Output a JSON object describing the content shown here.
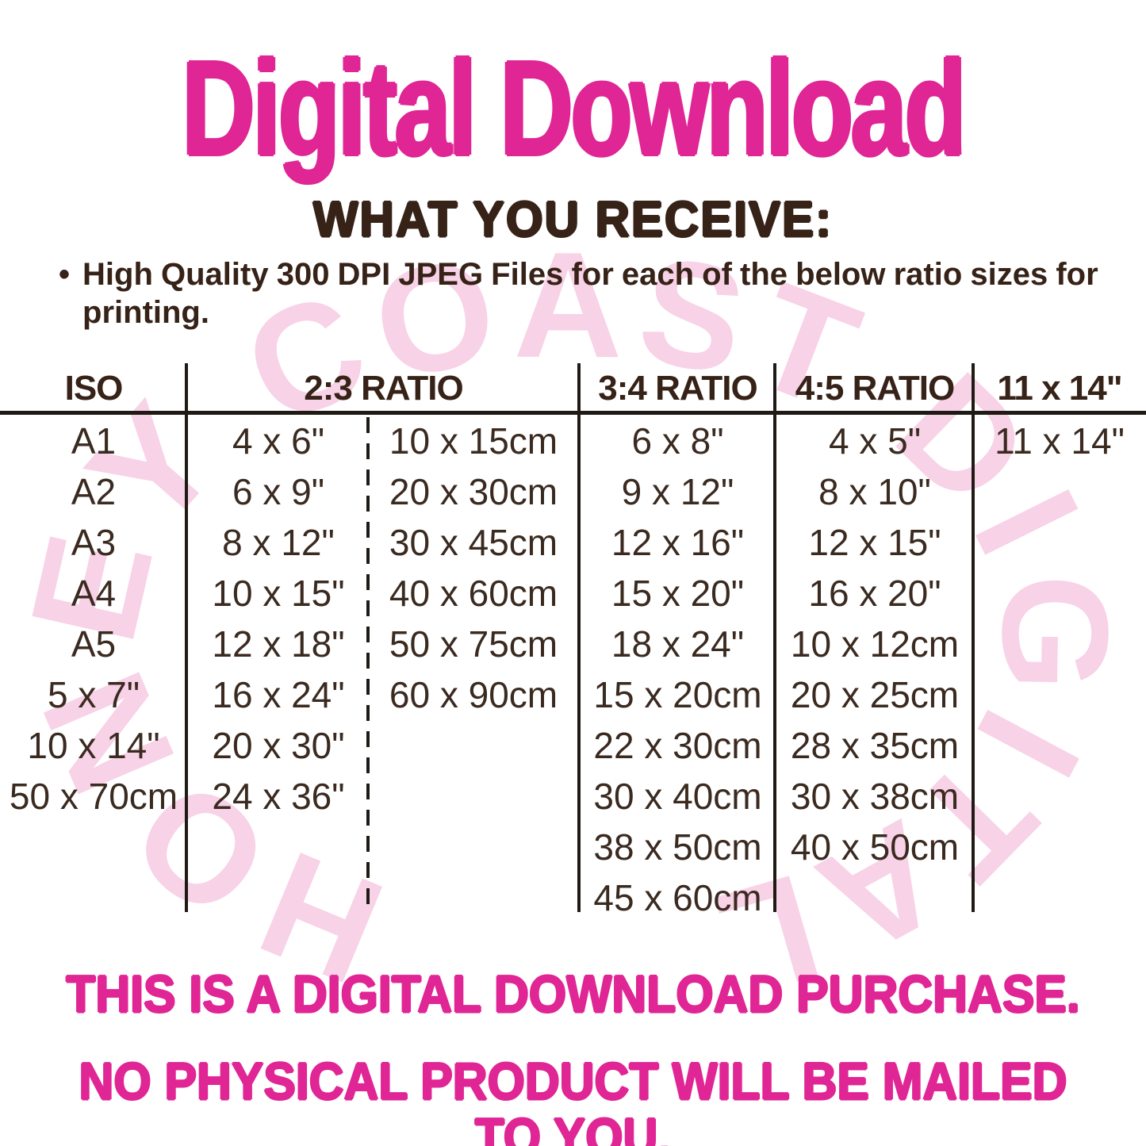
{
  "title": "Digital Download",
  "section": {
    "heading": "WHAT YOU RECEIVE:",
    "bullet_marker": "•",
    "bullet": "High Quality 300 DPI JPEG Files for each of the below ratio sizes for printing."
  },
  "watermark_text": "HONEY COAST DIGITAL",
  "table": {
    "headers": {
      "iso": "ISO",
      "ratio23": "2:3 RATIO",
      "ratio34": "3:4 RATIO",
      "ratio45": "4:5 RATIO",
      "size11": "11 x 14\""
    },
    "iso_column": [
      "A1",
      "A2",
      "A3",
      "A4",
      "A5",
      "5 x 7\"",
      "10 x 14\"",
      "50 x 70cm"
    ],
    "ratio23_inches": [
      "4 x 6\"",
      "6 x 9\"",
      "8 x 12\"",
      "10 x 15\"",
      "12 x 18\"",
      "16 x 24\"",
      "20 x 30\"",
      "24 x 36\""
    ],
    "ratio23_cm": [
      "10 x 15cm",
      "20 x 30cm",
      "30 x 45cm",
      "40 x 60cm",
      "50 x 75cm",
      "60 x 90cm"
    ],
    "ratio34_column": [
      "6 x 8\"",
      "9 x 12\"",
      "12 x 16\"",
      "15 x 20\"",
      "18 x 24\"",
      "15 x 20cm",
      "22 x 30cm",
      "30 x 40cm",
      "38 x 50cm",
      "45 x 60cm"
    ],
    "ratio45_column": [
      "4 x 5\"",
      "8 x 10\"",
      "12 x 15\"",
      "16 x 20\"",
      "10 x 12cm",
      "20 x 25cm",
      "28 x 35cm",
      "30 x 38cm",
      "40 x 50cm"
    ],
    "size11_column": [
      "11 x 14\""
    ]
  },
  "footer": {
    "line1": "THIS IS A DIGITAL DOWNLOAD PURCHASE.",
    "line2": "NO PHYSICAL PRODUCT WILL BE MAILED TO YOU."
  },
  "colors": {
    "pink": "#e02595",
    "brown": "#3a2a20",
    "heading_brown": "#362217",
    "line": "#201a15",
    "watermark_pink": "#f8d2e7"
  }
}
